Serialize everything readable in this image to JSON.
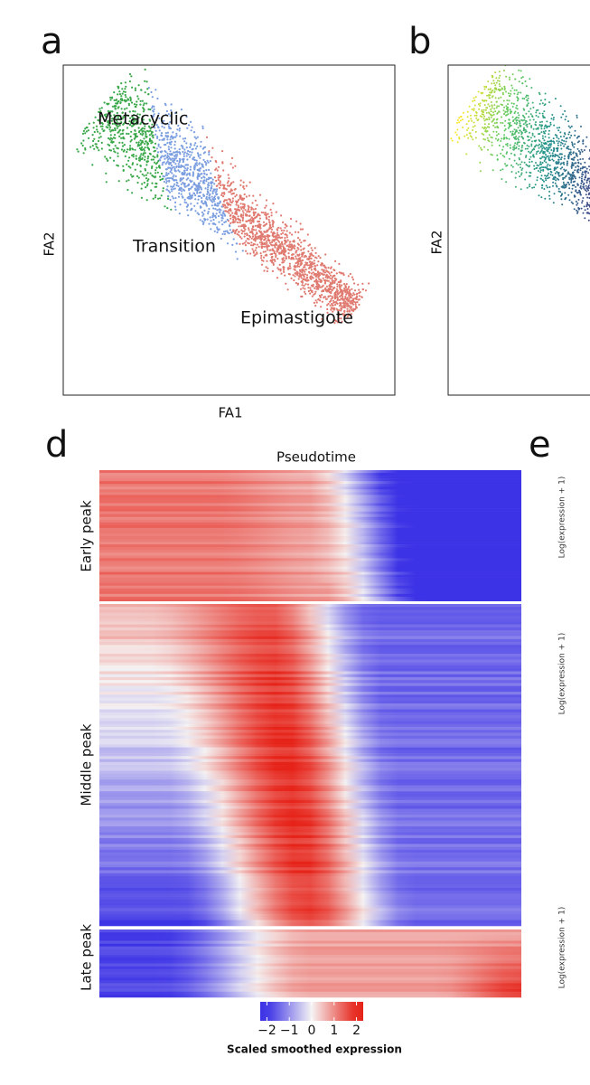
{
  "panels": {
    "a": {
      "label": "a",
      "xlabel": "FA1",
      "ylabel": "FA2",
      "clusters": [
        "Metacyclic",
        "Transition",
        "Epimastigote"
      ]
    },
    "b": {
      "label": "b",
      "ylabel": "FA2"
    },
    "d": {
      "label": "d",
      "title": "Pseudotime",
      "row_groups": [
        "Early peak",
        "Middle peak",
        "Late peak"
      ],
      "colorbar": {
        "label": "Scaled smoothed expression",
        "lim": [
          -2.3,
          2.3
        ],
        "ticks": [
          {
            "value": -2,
            "label": "−2"
          },
          {
            "value": -1,
            "label": "−1"
          },
          0,
          1,
          2
        ]
      }
    },
    "e": {
      "label": "e",
      "ylabels": [
        "Log(expression + 1)",
        "Log(expression + 1)",
        "Log(expression + 1)"
      ]
    }
  }
}
